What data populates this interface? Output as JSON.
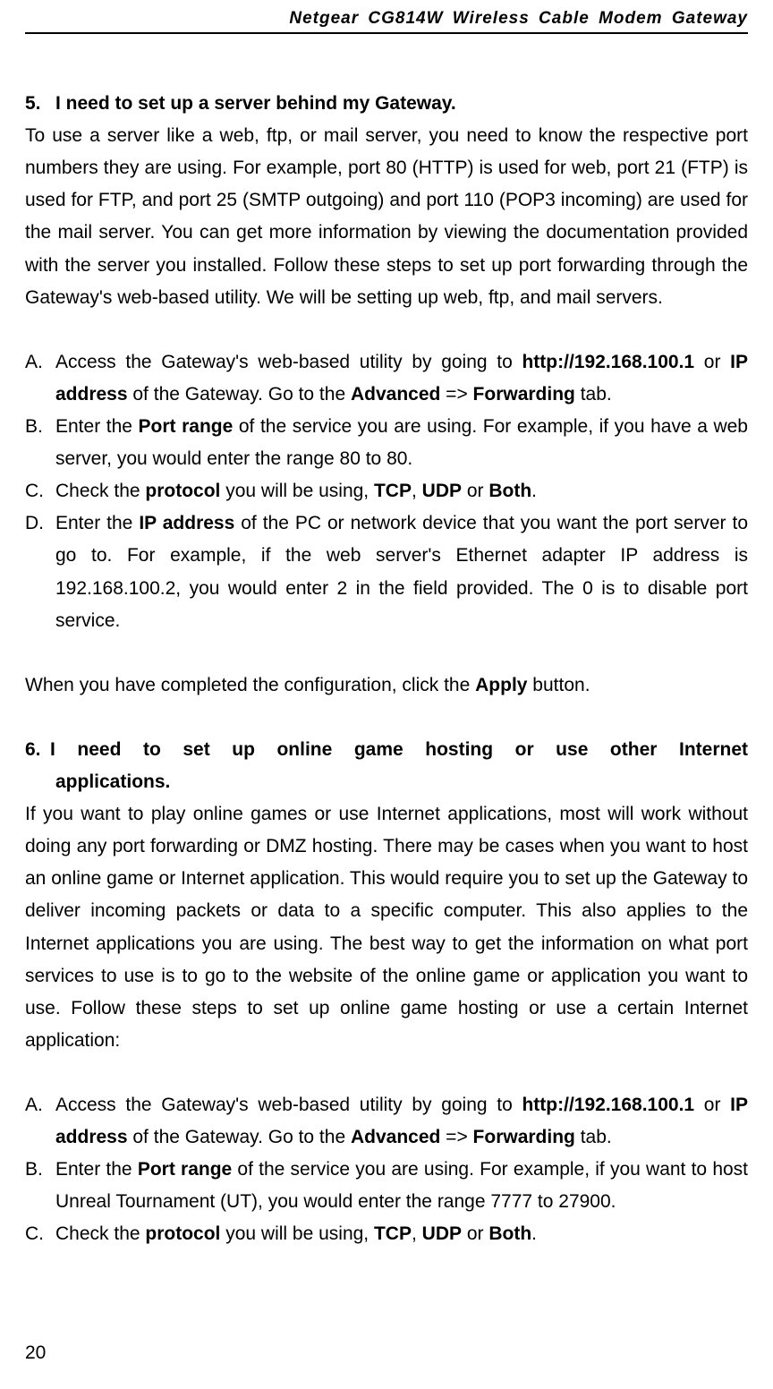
{
  "header": {
    "title": "Netgear CG814W Wireless Cable Modem Gateway"
  },
  "pageNumber": "20",
  "section5": {
    "num": "5.",
    "title": "I need to set up a server behind my Gateway.",
    "intro_pre": "To use a server like a web, ftp, or mail server, you need to know the respective port numbers they are using. For example, port 80 (HTTP) is used for web, port 21 (FTP) is used for FTP, and port 25 (SMTP outgoing) and port 110 (POP3 incoming) are used for the mail server. You can get more information by viewing the documentation provided with the server you installed. Follow these steps to set up port forwarding through the Gateway's web-based utility. We will be setting up web, ftp, and mail servers.",
    "itemA": {
      "letter": "A.",
      "t1": "Access the Gateway's web-based utility by going to ",
      "b1": "http://192.168.100.1",
      "t2": " or ",
      "b2": "IP address",
      "t3": " of the Gateway. Go to the ",
      "b3": "Advanced",
      "t4": " => ",
      "b4": "Forwarding",
      "t5": " tab."
    },
    "itemB": {
      "letter": "B.",
      "t1": "Enter the ",
      "b1": "Port range",
      "t2": " of the service you are using. For example, if you have a web server, you would enter the range 80 to 80."
    },
    "itemC": {
      "letter": "C.",
      "t1": "Check the ",
      "b1": "protocol",
      "t2": " you will be using, ",
      "b2": "TCP",
      "t3": ", ",
      "b3": "UDP",
      "t4": " or ",
      "b4": "Both",
      "t5": "."
    },
    "itemD": {
      "letter": "D.",
      "t1": "Enter the ",
      "b1": "IP address",
      "t2": " of the PC or network device that you want the port server to go to. For example, if the web server's Ethernet adapter IP address is 192.168.100.2, you would enter 2 in the field provided. The 0 is to disable port service."
    },
    "closing_t1": "When you have completed the configuration, click the ",
    "closing_b1": "Apply",
    "closing_t2": " button."
  },
  "section6": {
    "num": "6.",
    "title_line1": "I need to set up online game hosting or use other Internet",
    "title_line2": "applications.",
    "intro": "If you want to play online games or use Internet applications, most will work without doing any port forwarding or DMZ hosting. There may be cases when you want to host an online game or Internet application. This would require you to set up the Gateway to deliver incoming packets or data to a specific computer. This also applies to the Internet applications you are using. The best way to get the information on what port services to use is to go to the website of the online game or application you want to use. Follow these steps to set up online game hosting or use a certain Internet application:",
    "itemA": {
      "letter": "A.",
      "t1": "Access the Gateway's web-based utility by going to ",
      "b1": "http://192.168.100.1",
      "t2": " or ",
      "b2": "IP address",
      "t3": " of the Gateway. Go to the ",
      "b3": "Advanced",
      "t4": " => ",
      "b4": "Forwarding",
      "t5": " tab."
    },
    "itemB": {
      "letter": "B.",
      "t1": "Enter the ",
      "b1": "Port range",
      "t2": " of the service you are using. For example, if you want to host Unreal Tournament (UT), you would enter the range 7777 to 27900."
    },
    "itemC": {
      "letter": "C.",
      "t1": "Check the ",
      "b1": "protocol",
      "t2": " you will be using, ",
      "b2": "TCP",
      "t3": ", ",
      "b3": "UDP",
      "t4": " or ",
      "b4": "Both",
      "t5": "."
    }
  }
}
